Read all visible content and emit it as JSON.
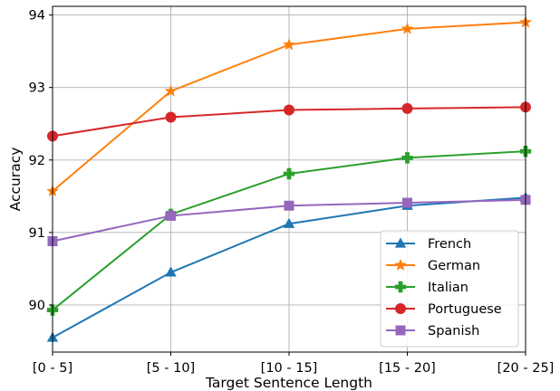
{
  "chart_data": {
    "type": "line",
    "title": "",
    "xlabel": "Target Sentence Length",
    "ylabel": "Accuracy",
    "categories": [
      "[0 - 5]",
      "[5 - 10]",
      "[10 - 15]",
      "[15 - 20]",
      "[20 - 25]"
    ],
    "ylim": [
      89.35,
      94.12
    ],
    "yticks": [
      90,
      91,
      92,
      93,
      94
    ],
    "grid": true,
    "legend_position": "lower-right",
    "series": [
      {
        "name": "French",
        "color": "#1f77b4",
        "marker": "triangle",
        "values": [
          89.55,
          90.45,
          91.12,
          91.37,
          91.48
        ]
      },
      {
        "name": "German",
        "color": "#ff7f0e",
        "marker": "star",
        "values": [
          91.57,
          92.95,
          93.59,
          93.81,
          93.9
        ]
      },
      {
        "name": "Italian",
        "color": "#2ca02c",
        "marker": "plus",
        "values": [
          89.93,
          91.25,
          91.81,
          92.03,
          92.12
        ]
      },
      {
        "name": "Portuguese",
        "color": "#d62728",
        "marker": "circle",
        "values": [
          92.33,
          92.59,
          92.69,
          92.71,
          92.73
        ]
      },
      {
        "name": "Spanish",
        "color": "#9467bd",
        "marker": "square",
        "values": [
          90.88,
          91.23,
          91.37,
          91.41,
          91.45
        ]
      }
    ]
  }
}
